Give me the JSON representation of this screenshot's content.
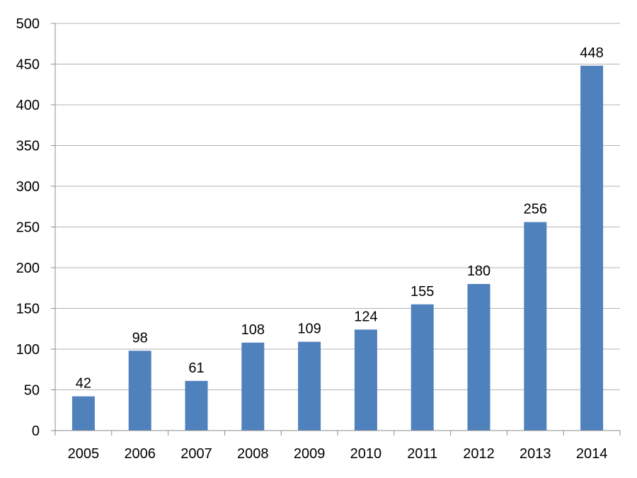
{
  "chart_data": {
    "type": "bar",
    "categories": [
      "2005",
      "2006",
      "2007",
      "2008",
      "2009",
      "2010",
      "2011",
      "2012",
      "2013",
      "2014"
    ],
    "values": [
      42,
      98,
      61,
      108,
      109,
      124,
      155,
      180,
      256,
      448
    ],
    "title": "",
    "xlabel": "",
    "ylabel": "",
    "ylim": [
      0,
      500
    ],
    "yticks": [
      0,
      50,
      100,
      150,
      200,
      250,
      300,
      350,
      400,
      450,
      500
    ],
    "grid": true,
    "legend": "none",
    "data_labels": true,
    "colors": {
      "bar": "#4f81bd",
      "grid": "#b3b3b3",
      "axis": "#8c8c8c"
    }
  }
}
